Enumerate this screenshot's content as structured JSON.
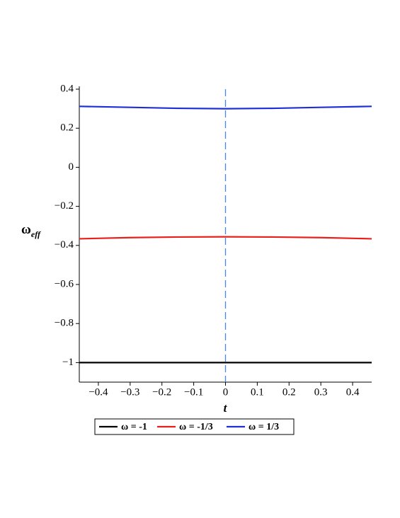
{
  "chart_data": {
    "type": "line",
    "xlabel": "t",
    "ylabel": {
      "main": "ω",
      "sub": "eff"
    },
    "x": [
      -0.46,
      -0.3,
      -0.15,
      0,
      0.15,
      0.3,
      0.46
    ],
    "series": [
      {
        "name": "ω = -1",
        "color": "#000000",
        "values": [
          -1,
          -1,
          -1,
          -1,
          -1,
          -1,
          -1
        ]
      },
      {
        "name": "ω = -1/3",
        "color": "#e8201c",
        "values": [
          -0.366,
          -0.36,
          -0.357,
          -0.356,
          -0.357,
          -0.36,
          -0.366
        ]
      },
      {
        "name": "ω = 1/3",
        "color": "#1f2fd6",
        "values": [
          0.312,
          0.307,
          0.302,
          0.3,
          0.302,
          0.307,
          0.312
        ]
      }
    ],
    "reference_line": {
      "x": 0,
      "color": "#4a86e8",
      "style": "dashed"
    },
    "xlim": [
      -0.46,
      0.46
    ],
    "ylim": [
      -1.1,
      0.4
    ],
    "xticks": [
      {
        "value": -0.4,
        "label": "−0.4"
      },
      {
        "value": -0.3,
        "label": "−0.3"
      },
      {
        "value": -0.2,
        "label": "−0.2"
      },
      {
        "value": -0.1,
        "label": "−0.1"
      },
      0,
      0.1,
      0.2,
      0.3,
      0.4
    ],
    "yticks": [
      0.4,
      0.2,
      0,
      {
        "value": -0.2,
        "label": "−0.2"
      },
      {
        "value": -0.4,
        "label": "−0.4"
      },
      {
        "value": -0.6,
        "label": "−0.6"
      },
      {
        "value": -0.8,
        "label": "−0.8"
      },
      {
        "value": -1,
        "label": "−1"
      }
    ],
    "legend": "bottom"
  }
}
